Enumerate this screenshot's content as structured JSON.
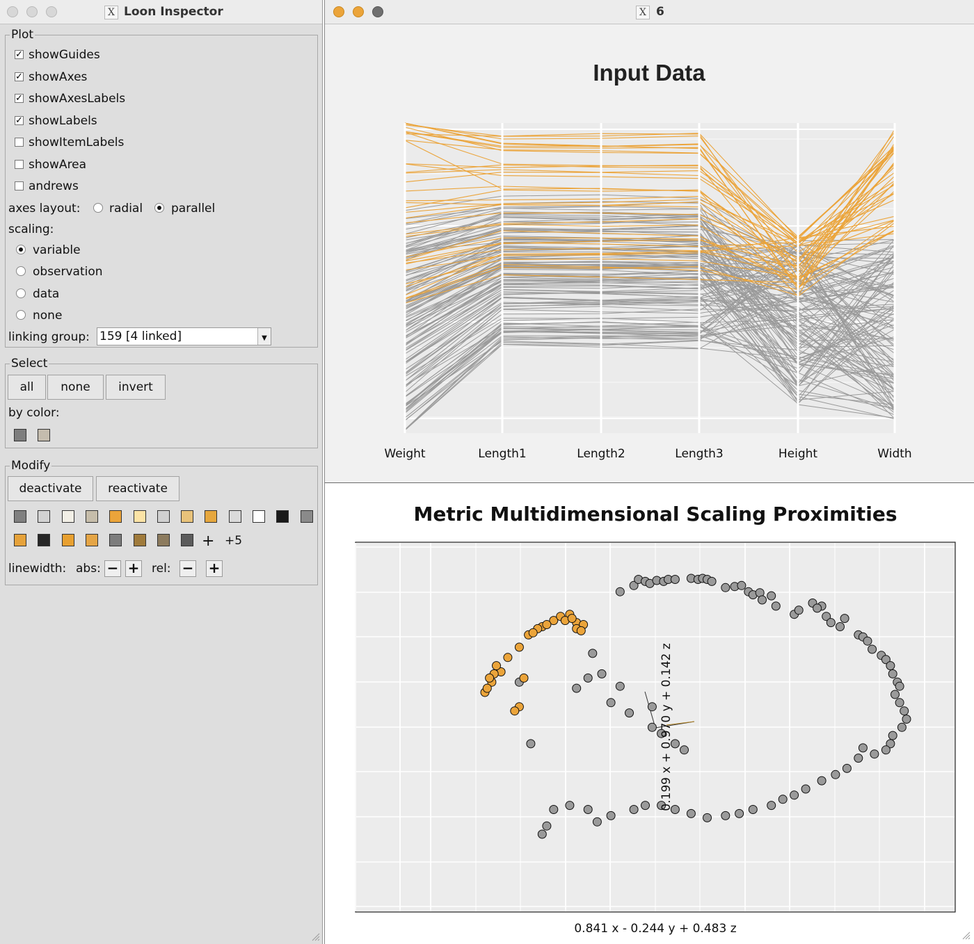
{
  "inspector": {
    "title": "Loon Inspector",
    "plot": {
      "legend": "Plot",
      "checkboxes": [
        {
          "label": "showGuides",
          "checked": true
        },
        {
          "label": "showAxes",
          "checked": true
        },
        {
          "label": "showAxesLabels",
          "checked": true
        },
        {
          "label": "showLabels",
          "checked": true
        },
        {
          "label": "showItemLabels",
          "checked": false
        },
        {
          "label": "showArea",
          "checked": false
        },
        {
          "label": "andrews",
          "checked": false
        }
      ],
      "axes_layout_label": "axes layout:",
      "axes_layout_options": [
        {
          "label": "radial",
          "selected": false
        },
        {
          "label": "parallel",
          "selected": true
        }
      ],
      "scaling_label": "scaling:",
      "scaling_options": [
        {
          "label": "variable",
          "selected": true
        },
        {
          "label": "observation",
          "selected": false
        },
        {
          "label": "data",
          "selected": false
        },
        {
          "label": "none",
          "selected": false
        }
      ],
      "linking_group_label": "linking group:",
      "linking_group_value": "159  [4 linked]"
    },
    "select": {
      "legend": "Select",
      "buttons": [
        "all",
        "none",
        "invert"
      ],
      "by_color_label": "by color:",
      "color_swatches": [
        "#7e7e7e",
        "#c4bcae"
      ]
    },
    "modify": {
      "legend": "Modify",
      "deactivate": "deactivate",
      "reactivate": "reactivate",
      "swatch_row1": [
        "#808080",
        "#d2d2d2",
        "#f2efe6",
        "#c6bdaa",
        "#eba43a",
        "#fbe3a6",
        "#d0d0d0",
        "#e8c27a",
        "#e6a73e",
        "#dadada",
        "#ffffff",
        "#1a1a1a",
        "#8a8a8a"
      ],
      "swatch_row2": [
        "#e6a23a",
        "#262626",
        "#e8a030",
        "#e5a545",
        "#7d7d7d",
        "#a07b3c",
        "#8c7b5e",
        "#5c5c5c"
      ],
      "more_label": "+5",
      "linewidth_label": "linewidth:",
      "abs_label": "abs:",
      "rel_label": "rel:",
      "minus": "−",
      "plus": "+"
    }
  },
  "plot_window": {
    "title": "6",
    "top_plot": {
      "chart_data": {
        "type": "line",
        "title": "Input Data",
        "axes": [
          "Weight",
          "Length1",
          "Length2",
          "Length3",
          "Height",
          "Width"
        ],
        "n_highlighted": 37,
        "n_other": 122,
        "series_colors": {
          "highlighted": "#eba43a",
          "other": "#9a9a9a"
        },
        "scaling": "variable",
        "grid": true
      }
    },
    "bottom_plot": {
      "chart_data": {
        "type": "scatter",
        "title": "Metric Multidimensional Scaling Proximities",
        "xlabel": "0.841 x - 0.244 y + 0.483 z",
        "ylabel": "0.199 x + 0.970 y + 0.142 z",
        "colors": {
          "highlighted": "#eba43a",
          "other": "#9a9a9a"
        },
        "points": [
          [
            0.74,
            0.16,
            0
          ],
          [
            0.8,
            0.13,
            0
          ],
          [
            0.82,
            0.1,
            0
          ],
          [
            0.85,
            0.11,
            0
          ],
          [
            0.87,
            0.12,
            0
          ],
          [
            0.9,
            0.105,
            0
          ],
          [
            0.93,
            0.11,
            0
          ],
          [
            0.95,
            0.1,
            0
          ],
          [
            0.98,
            0.1,
            0
          ],
          [
            1.05,
            0.095,
            0
          ],
          [
            1.08,
            0.1,
            0
          ],
          [
            1.1,
            0.095,
            0
          ],
          [
            1.12,
            0.1,
            0
          ],
          [
            1.14,
            0.11,
            0
          ],
          [
            1.2,
            0.14,
            0
          ],
          [
            1.24,
            0.135,
            0
          ],
          [
            1.27,
            0.13,
            0
          ],
          [
            1.3,
            0.16,
            0
          ],
          [
            1.32,
            0.175,
            0
          ],
          [
            1.35,
            0.165,
            0
          ],
          [
            1.36,
            0.2,
            0
          ],
          [
            1.4,
            0.18,
            0
          ],
          [
            1.42,
            0.23,
            0
          ],
          [
            1.5,
            0.27,
            0
          ],
          [
            1.52,
            0.25,
            0
          ],
          [
            1.58,
            0.215,
            0
          ],
          [
            1.62,
            0.23,
            0
          ],
          [
            1.6,
            0.24,
            0
          ],
          [
            1.64,
            0.28,
            0
          ],
          [
            1.66,
            0.31,
            0
          ],
          [
            1.7,
            0.33,
            0
          ],
          [
            1.72,
            0.29,
            0
          ],
          [
            1.78,
            0.37,
            0
          ],
          [
            1.8,
            0.38,
            0
          ],
          [
            1.82,
            0.4,
            0
          ],
          [
            1.84,
            0.44,
            0
          ],
          [
            1.88,
            0.47,
            0
          ],
          [
            1.9,
            0.49,
            0
          ],
          [
            1.92,
            0.52,
            0
          ],
          [
            1.93,
            0.56,
            0
          ],
          [
            1.95,
            0.6,
            0
          ],
          [
            1.96,
            0.62,
            0
          ],
          [
            1.94,
            0.66,
            0
          ],
          [
            1.96,
            0.7,
            0
          ],
          [
            1.98,
            0.74,
            0
          ],
          [
            1.99,
            0.78,
            0
          ],
          [
            1.97,
            0.82,
            0
          ],
          [
            1.93,
            0.86,
            0
          ],
          [
            1.92,
            0.9,
            0
          ],
          [
            1.9,
            0.93,
            0
          ],
          [
            1.85,
            0.95,
            0
          ],
          [
            1.8,
            0.92,
            0
          ],
          [
            1.78,
            0.97,
            0
          ],
          [
            1.73,
            1.02,
            0
          ],
          [
            1.68,
            1.05,
            0
          ],
          [
            1.62,
            1.08,
            0
          ],
          [
            1.55,
            1.12,
            0
          ],
          [
            1.5,
            1.15,
            0
          ],
          [
            1.45,
            1.17,
            0
          ],
          [
            1.4,
            1.2,
            0
          ],
          [
            1.32,
            1.22,
            0
          ],
          [
            1.26,
            1.24,
            0
          ],
          [
            1.2,
            1.25,
            0
          ],
          [
            1.12,
            1.26,
            0
          ],
          [
            1.05,
            1.24,
            0
          ],
          [
            0.98,
            1.22,
            0
          ],
          [
            0.92,
            1.2,
            0
          ],
          [
            0.85,
            1.2,
            0
          ],
          [
            0.8,
            1.22,
            0
          ],
          [
            0.7,
            1.25,
            0
          ],
          [
            0.64,
            1.28,
            0
          ],
          [
            0.6,
            1.22,
            0
          ],
          [
            0.52,
            1.2,
            0
          ],
          [
            0.45,
            1.22,
            0
          ],
          [
            0.42,
            1.3,
            0
          ],
          [
            0.4,
            1.34,
            0
          ],
          [
            0.3,
            0.6,
            0
          ],
          [
            0.35,
            0.9,
            0
          ],
          [
            0.55,
            0.63,
            0
          ],
          [
            0.6,
            0.58,
            0
          ],
          [
            0.62,
            0.46,
            0
          ],
          [
            0.66,
            0.56,
            0
          ],
          [
            0.7,
            0.7,
            0
          ],
          [
            0.74,
            0.62,
            0
          ],
          [
            0.78,
            0.75,
            0
          ],
          [
            0.88,
            0.72,
            0
          ],
          [
            0.88,
            0.82,
            0
          ],
          [
            0.92,
            0.85,
            0
          ],
          [
            0.98,
            0.9,
            0
          ],
          [
            1.02,
            0.93,
            0
          ],
          [
            0.15,
            0.65,
            1
          ],
          [
            0.18,
            0.6,
            1
          ],
          [
            0.22,
            0.55,
            1
          ],
          [
            0.25,
            0.48,
            1
          ],
          [
            0.3,
            0.43,
            1
          ],
          [
            0.34,
            0.37,
            1
          ],
          [
            0.4,
            0.33,
            1
          ],
          [
            0.45,
            0.3,
            1
          ],
          [
            0.48,
            0.28,
            1
          ],
          [
            0.52,
            0.27,
            1
          ],
          [
            0.55,
            0.31,
            1
          ],
          [
            0.58,
            0.32,
            1
          ],
          [
            0.5,
            0.3,
            1
          ],
          [
            0.42,
            0.32,
            1
          ],
          [
            0.38,
            0.34,
            1
          ],
          [
            0.36,
            0.36,
            1
          ],
          [
            0.32,
            0.58,
            1
          ],
          [
            0.3,
            0.72,
            1
          ],
          [
            0.28,
            0.74,
            1
          ],
          [
            0.2,
            0.52,
            1
          ],
          [
            0.19,
            0.56,
            1
          ],
          [
            0.17,
            0.58,
            1
          ],
          [
            0.16,
            0.63,
            1
          ],
          [
            0.53,
            0.29,
            1
          ],
          [
            0.55,
            0.34,
            1
          ],
          [
            0.57,
            0.35,
            1
          ]
        ]
      }
    }
  }
}
